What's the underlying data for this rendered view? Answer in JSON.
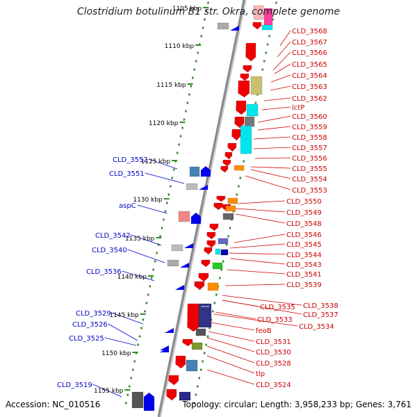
{
  "title": "Clostridium botulinum B1 str. Okra, complete genome",
  "accession": "Accession: NC_010516",
  "summary": "Topology: circular; Length: 3,958,233 bp; Genes: 3,761",
  "colors": {
    "backbone": "#8a8a8a",
    "ruler_dots": "#2e8b22",
    "right_labels": "#cc0000",
    "left_labels": "#0000cc",
    "forward_gene": "#0000ee",
    "reverse_gene": "#ee0000"
  },
  "ruler_labels": [
    "1105 kbp",
    "1110 kbp",
    "1115 kbp",
    "1120 kbp",
    "1125 kbp",
    "1130 kbp",
    "1135 kbp",
    "1140 kbp",
    "1145 kbp",
    "1150 kbp",
    "1155 kbp"
  ],
  "right_genes": [
    "CLD_3568",
    "CLD_3567",
    "CLD_3566",
    "CLD_3565",
    "CLD_3564",
    "CLD_3563",
    "CLD_3562",
    "lctP",
    "CLD_3560",
    "CLD_3559",
    "CLD_3558",
    "CLD_3557",
    "CLD_3556",
    "CLD_3555",
    "CLD_3554",
    "CLD_3553",
    "CLD_3550",
    "CLD_3549",
    "CLD_3548",
    "CLD_3546",
    "CLD_3545",
    "CLD_3544",
    "CLD_3543",
    "CLD_3541",
    "CLD_3539",
    "CLD_3538",
    "CLD_3537",
    "CLD_3535",
    "CLD_3534",
    "CLD_3533",
    "feoB",
    "CLD_3531",
    "CLD_3530",
    "CLD_3528",
    "tlp",
    "CLD_3524"
  ],
  "left_genes": [
    "CLD_3552",
    "CLD_3551",
    "aspC",
    "CLD_3542",
    "CLD_3540",
    "CLD_3536",
    "CLD_3529",
    "CLD_3526",
    "CLD_3525",
    "CLD_3519"
  ]
}
